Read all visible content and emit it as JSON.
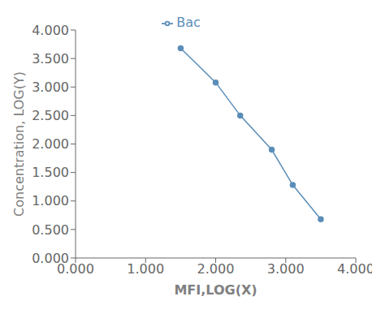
{
  "chart_data": {
    "type": "line",
    "x": [
      1.5,
      2.0,
      2.35,
      2.8,
      3.1,
      3.5
    ],
    "series": [
      {
        "name": "Bac",
        "color": "#5B8DB8",
        "marker": "circle",
        "values": [
          3.68,
          3.08,
          2.5,
          1.9,
          1.28,
          0.68
        ]
      }
    ],
    "xlabel": "MFI,LOG(X)",
    "ylabel": "Concentration, LOG(Y)",
    "xlim": [
      0.0,
      4.0
    ],
    "ylim": [
      0.0,
      4.0
    ],
    "xticks": [
      {
        "value": 0.0,
        "label": "0.000"
      },
      {
        "value": 1.0,
        "label": "1.000"
      },
      {
        "value": 2.0,
        "label": "2.000"
      },
      {
        "value": 3.0,
        "label": "3.000"
      },
      {
        "value": 4.0,
        "label": "4.000"
      }
    ],
    "yticks": [
      {
        "value": 0.0,
        "label": "0.000"
      },
      {
        "value": 0.5,
        "label": "0.500"
      },
      {
        "value": 1.0,
        "label": "1.000"
      },
      {
        "value": 1.5,
        "label": "1.500"
      },
      {
        "value": 2.0,
        "label": "2.000"
      },
      {
        "value": 2.5,
        "label": "2.500"
      },
      {
        "value": 3.0,
        "label": "3.000"
      },
      {
        "value": 3.5,
        "label": "3.500"
      },
      {
        "value": 4.0,
        "label": "4.000"
      }
    ],
    "legend": "top"
  }
}
